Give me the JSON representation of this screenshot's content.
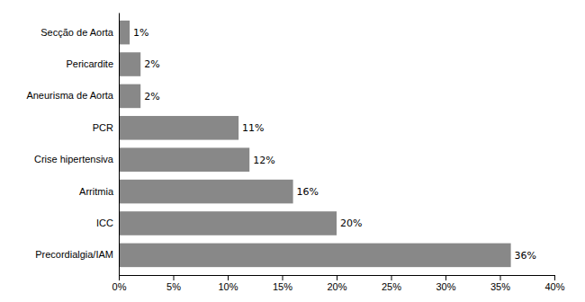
{
  "chart_data": {
    "type": "bar",
    "orientation": "horizontal",
    "categories": [
      "Precordialgia/IAM",
      "ICC",
      "Arritmia",
      "Crise hipertensiva",
      "PCR",
      "Aneurisma de Aorta",
      "Pericardite",
      "Secção de Aorta"
    ],
    "values": [
      36,
      20,
      16,
      12,
      11,
      2,
      2,
      1
    ],
    "value_labels": [
      "36%",
      "20%",
      "16%",
      "12%",
      "11%",
      "2%",
      "2%",
      "1%"
    ],
    "data_labels": true,
    "color": "#888888",
    "xlim": [
      0,
      40
    ],
    "xticks": [
      {
        "value": 0,
        "label": "0%"
      },
      {
        "value": 5,
        "label": "5%"
      },
      {
        "value": 10,
        "label": "10%"
      },
      {
        "value": 15,
        "label": "15%"
      },
      {
        "value": 20,
        "label": "20%"
      },
      {
        "value": 25,
        "label": "25%"
      },
      {
        "value": 30,
        "label": "30%"
      },
      {
        "value": 35,
        "label": "35%"
      },
      {
        "value": 40,
        "label": "40%"
      }
    ],
    "grid": false
  }
}
